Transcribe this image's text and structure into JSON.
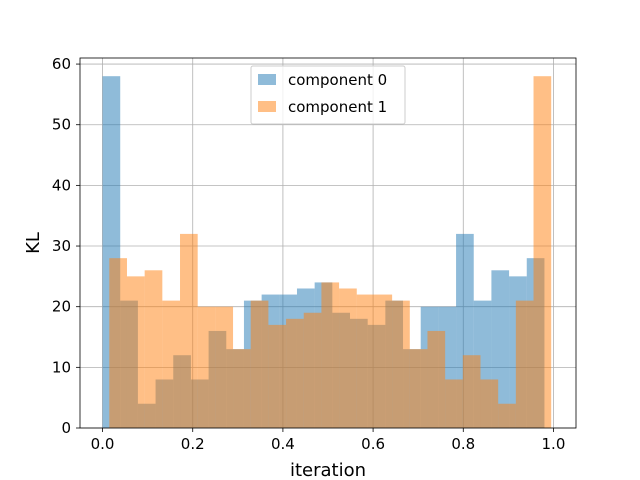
{
  "chart_data": {
    "type": "bar",
    "subtype": "overlapping-histogram",
    "xlabel": "iteration",
    "ylabel": "KL",
    "xlim": [
      -0.05,
      1.05
    ],
    "ylim": [
      0,
      61
    ],
    "xticks": [
      0.0,
      0.2,
      0.4,
      0.6,
      0.8,
      1.0
    ],
    "xtick_labels": [
      "0.0",
      "0.2",
      "0.4",
      "0.6",
      "0.8",
      "1.0"
    ],
    "yticks": [
      0,
      10,
      20,
      30,
      40,
      50,
      60
    ],
    "ytick_labels": [
      "0",
      "10",
      "20",
      "30",
      "40",
      "50",
      "60"
    ],
    "grid": true,
    "legend_position": "top-center",
    "series": [
      {
        "name": "component 0",
        "color": "#1f77b4",
        "alpha": 0.5,
        "range": [
          0.0,
          0.98
        ],
        "values": [
          58,
          21,
          4,
          8,
          12,
          8,
          16,
          13,
          21,
          22,
          22,
          23,
          24,
          19,
          18,
          17,
          21,
          13,
          20,
          20,
          32,
          21,
          26,
          25,
          28
        ]
      },
      {
        "name": "component 1",
        "color": "#ff7f0e",
        "alpha": 0.5,
        "range": [
          0.015,
          0.995
        ],
        "values": [
          28,
          25,
          26,
          21,
          32,
          20,
          20,
          13,
          21,
          17,
          18,
          19,
          24,
          23,
          22,
          22,
          21,
          13,
          16,
          8,
          12,
          8,
          4,
          21,
          58
        ]
      }
    ]
  }
}
